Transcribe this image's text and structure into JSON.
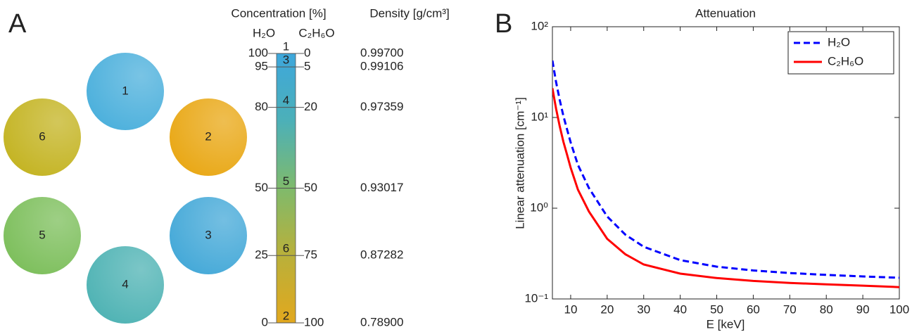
{
  "panel_labels": [
    "A",
    "B"
  ],
  "diagram": {
    "concentration_header": "Concentration [%]",
    "density_header": "Density [g/cm³]",
    "water_label": "H₂O",
    "ethanol_label": "C₂H₆O",
    "vials": [
      {
        "label": "1",
        "color": "#4cb0dc"
      },
      {
        "label": "2",
        "color": "#e9a816"
      },
      {
        "label": "3",
        "color": "#45a9d8"
      },
      {
        "label": "4",
        "color": "#4fb3b4"
      },
      {
        "label": "5",
        "color": "#7dbf5c"
      },
      {
        "label": "6",
        "color": "#c4b423"
      }
    ],
    "rows": [
      {
        "vial": "1",
        "water": 100,
        "ethanol": 0,
        "density": "0.99700"
      },
      {
        "vial": "3",
        "water": 95,
        "ethanol": 5,
        "density": "0.99106"
      },
      {
        "vial": "4",
        "water": 80,
        "ethanol": 20,
        "density": "0.97359"
      },
      {
        "vial": "5",
        "water": 50,
        "ethanol": 50,
        "density": "0.93017"
      },
      {
        "vial": "6",
        "water": 25,
        "ethanol": 75,
        "density": "0.87282"
      },
      {
        "vial": "2",
        "water": 0,
        "ethanol": 100,
        "density": "0.78900"
      }
    ],
    "colorbar_colors": [
      "#3ea7dc",
      "#4cb0b8",
      "#7fba6c",
      "#b9b03a",
      "#e2a81e"
    ]
  },
  "chart_data": {
    "type": "line",
    "title": "Attenuation",
    "x_label": "E [keV]",
    "y_label": "Linear attenuation [cm⁻¹]",
    "log_y": true,
    "legend": "upper right",
    "xlim": [
      5,
      100
    ],
    "xticks": [
      10,
      20,
      30,
      40,
      50,
      60,
      70,
      80,
      90,
      100
    ],
    "ylim": [
      0.1,
      100
    ],
    "yticks": [
      {
        "value": 0.1,
        "label": "10⁻¹"
      },
      {
        "value": 1,
        "label": "10⁰"
      },
      {
        "value": 10,
        "label": "10¹"
      },
      {
        "value": 100,
        "label": "10²"
      }
    ],
    "x": [
      5,
      6,
      7,
      8,
      9,
      10,
      12,
      15,
      20,
      25,
      30,
      40,
      50,
      60,
      70,
      80,
      90,
      100
    ],
    "series": [
      {
        "name": "H₂O",
        "color": "#0000ff",
        "dash": true,
        "values": [
          42.4,
          24.6,
          15.6,
          10.4,
          7.4,
          5.33,
          3.0,
          1.67,
          0.81,
          0.51,
          0.376,
          0.268,
          0.227,
          0.206,
          0.193,
          0.184,
          0.177,
          0.171
        ]
      },
      {
        "name": "C₂H₆O",
        "color": "#ff0000",
        "dash": false,
        "values": [
          21,
          12.5,
          8.0,
          5.4,
          3.9,
          2.8,
          1.6,
          0.92,
          0.46,
          0.31,
          0.24,
          0.19,
          0.17,
          0.158,
          0.15,
          0.145,
          0.14,
          0.135
        ]
      }
    ]
  }
}
